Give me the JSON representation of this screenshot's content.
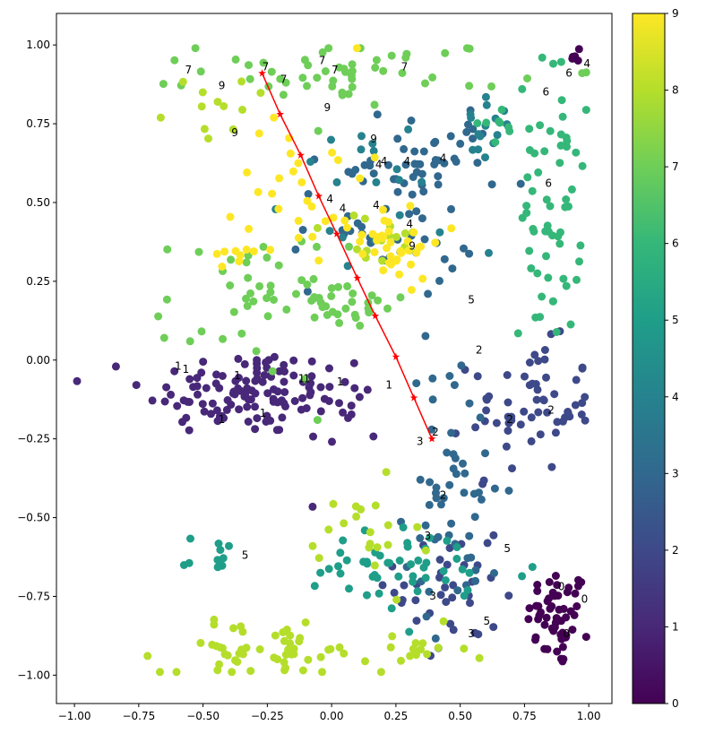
{
  "chart_data": {
    "type": "scatter",
    "xlim": [
      -1.07,
      1.09
    ],
    "ylim": [
      -1.09,
      1.1
    ],
    "x_ticks": [
      {
        "value": -1.0,
        "label": "−1.00"
      },
      {
        "value": -0.75,
        "label": "−0.75"
      },
      {
        "value": -0.5,
        "label": "−0.50"
      },
      {
        "value": -0.25,
        "label": "−0.25"
      },
      {
        "value": 0.0,
        "label": "0.00"
      },
      {
        "value": 0.25,
        "label": "0.25"
      },
      {
        "value": 0.5,
        "label": "0.50"
      },
      {
        "value": 0.75,
        "label": "0.75"
      },
      {
        "value": 1.0,
        "label": "1.00"
      }
    ],
    "y_ticks": [
      {
        "value": 1.0,
        "label": "1.00"
      },
      {
        "value": 0.75,
        "label": "0.75"
      },
      {
        "value": 0.5,
        "label": "0.50"
      },
      {
        "value": 0.25,
        "label": "0.25"
      },
      {
        "value": 0.0,
        "label": "0.00"
      },
      {
        "value": -0.25,
        "label": "−0.25"
      },
      {
        "value": -0.5,
        "label": "−0.50"
      },
      {
        "value": -0.75,
        "label": "−0.75"
      },
      {
        "value": -1.0,
        "label": "−1.00"
      }
    ],
    "grid": false,
    "colormap": "viridis",
    "colorbar": {
      "range": [
        0,
        9
      ],
      "ticks": [
        {
          "value": 0,
          "label": "0"
        },
        {
          "value": 1,
          "label": "1"
        },
        {
          "value": 2,
          "label": "2"
        },
        {
          "value": 3,
          "label": "3"
        },
        {
          "value": 4,
          "label": "4"
        },
        {
          "value": 5,
          "label": "5"
        },
        {
          "value": 6,
          "label": "6"
        },
        {
          "value": 7,
          "label": "7"
        },
        {
          "value": 8,
          "label": "8"
        },
        {
          "value": 9,
          "label": "9"
        }
      ]
    },
    "viridis_stops": [
      "#440154",
      "#482878",
      "#3e4989",
      "#31688e",
      "#26828e",
      "#1f9e89",
      "#35b779",
      "#6ece58",
      "#b5de2b",
      "#fde725"
    ],
    "clusters": [
      {
        "label": 0,
        "cx": 0.88,
        "cy": -0.82,
        "sx": 0.06,
        "sy": 0.08,
        "n": 55
      },
      {
        "label": 0,
        "cx": 0.95,
        "cy": 0.97,
        "sx": 0.02,
        "sy": 0.02,
        "n": 5
      },
      {
        "label": 1,
        "cx": -0.35,
        "cy": -0.1,
        "sx": 0.19,
        "sy": 0.07,
        "n": 110
      },
      {
        "label": 1,
        "cx": 0.05,
        "cy": -0.13,
        "sx": 0.08,
        "sy": 0.08,
        "n": 20
      },
      {
        "label": 2,
        "cx": 0.78,
        "cy": -0.15,
        "sx": 0.12,
        "sy": 0.1,
        "n": 60
      },
      {
        "label": 2,
        "cx": 0.45,
        "cy": -0.72,
        "sx": 0.1,
        "sy": 0.14,
        "n": 40
      },
      {
        "label": 3,
        "cx": 0.48,
        "cy": -0.42,
        "sx": 0.1,
        "sy": 0.2,
        "n": 55
      },
      {
        "label": 3,
        "cx": 0.2,
        "cy": 0.45,
        "sx": 0.18,
        "sy": 0.13,
        "n": 55
      },
      {
        "label": 3,
        "cx": 0.4,
        "cy": 0.65,
        "sx": 0.12,
        "sy": 0.08,
        "n": 30
      },
      {
        "label": 4,
        "cx": 0.25,
        "cy": 0.55,
        "sx": 0.2,
        "sy": 0.1,
        "n": 25
      },
      {
        "label": 4,
        "cx": 0.62,
        "cy": 0.75,
        "sx": 0.05,
        "sy": 0.04,
        "n": 10
      },
      {
        "label": 5,
        "cx": 0.3,
        "cy": -0.67,
        "sx": 0.25,
        "sy": 0.07,
        "n": 50
      },
      {
        "label": 5,
        "cx": -0.45,
        "cy": -0.62,
        "sx": 0.06,
        "sy": 0.03,
        "n": 10
      },
      {
        "label": 6,
        "cx": 0.85,
        "cy": 0.5,
        "sx": 0.06,
        "sy": 0.22,
        "n": 60
      },
      {
        "label": 6,
        "cx": 0.63,
        "cy": 0.75,
        "sx": 0.04,
        "sy": 0.03,
        "n": 8
      },
      {
        "label": 7,
        "cx": 0.1,
        "cy": 0.92,
        "sx": 0.3,
        "sy": 0.05,
        "n": 55
      },
      {
        "label": 7,
        "cx": -0.3,
        "cy": 0.17,
        "sx": 0.18,
        "sy": 0.12,
        "n": 45
      },
      {
        "label": 7,
        "cx": 0.05,
        "cy": 0.17,
        "sx": 0.12,
        "sy": 0.04,
        "n": 25
      },
      {
        "label": 8,
        "cx": -0.25,
        "cy": -0.92,
        "sx": 0.2,
        "sy": 0.04,
        "n": 55
      },
      {
        "label": 8,
        "cx": 0.35,
        "cy": -0.92,
        "sx": 0.1,
        "sy": 0.04,
        "n": 15
      },
      {
        "label": 8,
        "cx": 0.1,
        "cy": -0.6,
        "sx": 0.12,
        "sy": 0.1,
        "n": 20
      },
      {
        "label": 8,
        "cx": -0.45,
        "cy": 0.8,
        "sx": 0.1,
        "sy": 0.07,
        "n": 12
      },
      {
        "label": 8,
        "cx": 0.2,
        "cy": 0.37,
        "sx": 0.1,
        "sy": 0.05,
        "n": 15
      },
      {
        "label": 9,
        "cx": 0.2,
        "cy": 0.38,
        "sx": 0.12,
        "sy": 0.06,
        "n": 40
      },
      {
        "label": 9,
        "cx": -0.1,
        "cy": 0.6,
        "sx": 0.12,
        "sy": 0.15,
        "n": 25
      },
      {
        "label": 9,
        "cx": -0.35,
        "cy": 0.35,
        "sx": 0.06,
        "sy": 0.05,
        "n": 10
      }
    ],
    "trajectory": {
      "color": "#ff0000",
      "marker": "star",
      "x": [
        -0.27,
        -0.2,
        -0.12,
        -0.05,
        0.02,
        0.1,
        0.17,
        0.25,
        0.32,
        0.39
      ],
      "y": [
        0.91,
        0.78,
        0.65,
        0.52,
        0.4,
        0.26,
        0.14,
        0.01,
        -0.12,
        -0.25
      ]
    },
    "annotations": [
      {
        "text": "7",
        "x": -0.57,
        "y": 0.91
      },
      {
        "text": "7",
        "x": -0.27,
        "y": 0.92
      },
      {
        "text": "7",
        "x": -0.2,
        "y": 0.88
      },
      {
        "text": "7",
        "x": -0.05,
        "y": 0.94
      },
      {
        "text": "7",
        "x": 0.0,
        "y": 0.91
      },
      {
        "text": "7",
        "x": 0.27,
        "y": 0.92
      },
      {
        "text": "9",
        "x": -0.44,
        "y": 0.86
      },
      {
        "text": "9",
        "x": -0.03,
        "y": 0.79
      },
      {
        "text": "9",
        "x": -0.39,
        "y": 0.71
      },
      {
        "text": "9",
        "x": 0.15,
        "y": 0.69
      },
      {
        "text": "9",
        "x": 0.3,
        "y": 0.35
      },
      {
        "text": "6",
        "x": 0.82,
        "y": 0.84
      },
      {
        "text": "6",
        "x": 0.91,
        "y": 0.9
      },
      {
        "text": "4",
        "x": 0.98,
        "y": 0.93
      },
      {
        "text": "6",
        "x": 0.83,
        "y": 0.55
      },
      {
        "text": "4",
        "x": 0.17,
        "y": 0.61
      },
      {
        "text": "4",
        "x": 0.19,
        "y": 0.62
      },
      {
        "text": "4",
        "x": 0.28,
        "y": 0.62
      },
      {
        "text": "4",
        "x": 0.42,
        "y": 0.63
      },
      {
        "text": "4",
        "x": -0.02,
        "y": 0.5
      },
      {
        "text": "4",
        "x": 0.03,
        "y": 0.47
      },
      {
        "text": "4",
        "x": 0.16,
        "y": 0.48
      },
      {
        "text": "4",
        "x": 0.29,
        "y": 0.42
      },
      {
        "text": "5",
        "x": 0.53,
        "y": 0.18
      },
      {
        "text": "2",
        "x": 0.56,
        "y": 0.02
      },
      {
        "text": "2",
        "x": 0.84,
        "y": -0.17
      },
      {
        "text": "2",
        "x": 0.68,
        "y": -0.2
      },
      {
        "text": "2",
        "x": 0.39,
        "y": -0.24
      },
      {
        "text": "3",
        "x": 0.33,
        "y": -0.27
      },
      {
        "text": "2",
        "x": 0.42,
        "y": -0.44
      },
      {
        "text": "3",
        "x": 0.36,
        "y": -0.57
      },
      {
        "text": "5",
        "x": 0.67,
        "y": -0.61
      },
      {
        "text": "5",
        "x": -0.35,
        "y": -0.63
      },
      {
        "text": "3",
        "x": 0.38,
        "y": -0.76
      },
      {
        "text": "0",
        "x": 0.88,
        "y": -0.73
      },
      {
        "text": "0",
        "x": 0.97,
        "y": -0.77
      },
      {
        "text": "5",
        "x": 0.59,
        "y": -0.84
      },
      {
        "text": "3",
        "x": 0.53,
        "y": -0.88
      },
      {
        "text": "0",
        "x": 0.9,
        "y": -0.88
      },
      {
        "text": "1",
        "x": -0.61,
        "y": -0.03
      },
      {
        "text": "1",
        "x": -0.58,
        "y": -0.04
      },
      {
        "text": "1",
        "x": -0.38,
        "y": -0.06
      },
      {
        "text": "1",
        "x": -0.11,
        "y": -0.07
      },
      {
        "text": "1",
        "x": -0.13,
        "y": -0.07
      },
      {
        "text": "1",
        "x": 0.02,
        "y": -0.08
      },
      {
        "text": "1",
        "x": 0.21,
        "y": -0.09
      },
      {
        "text": "1",
        "x": -0.44,
        "y": -0.2
      },
      {
        "text": "1",
        "x": -0.28,
        "y": -0.18
      }
    ]
  }
}
